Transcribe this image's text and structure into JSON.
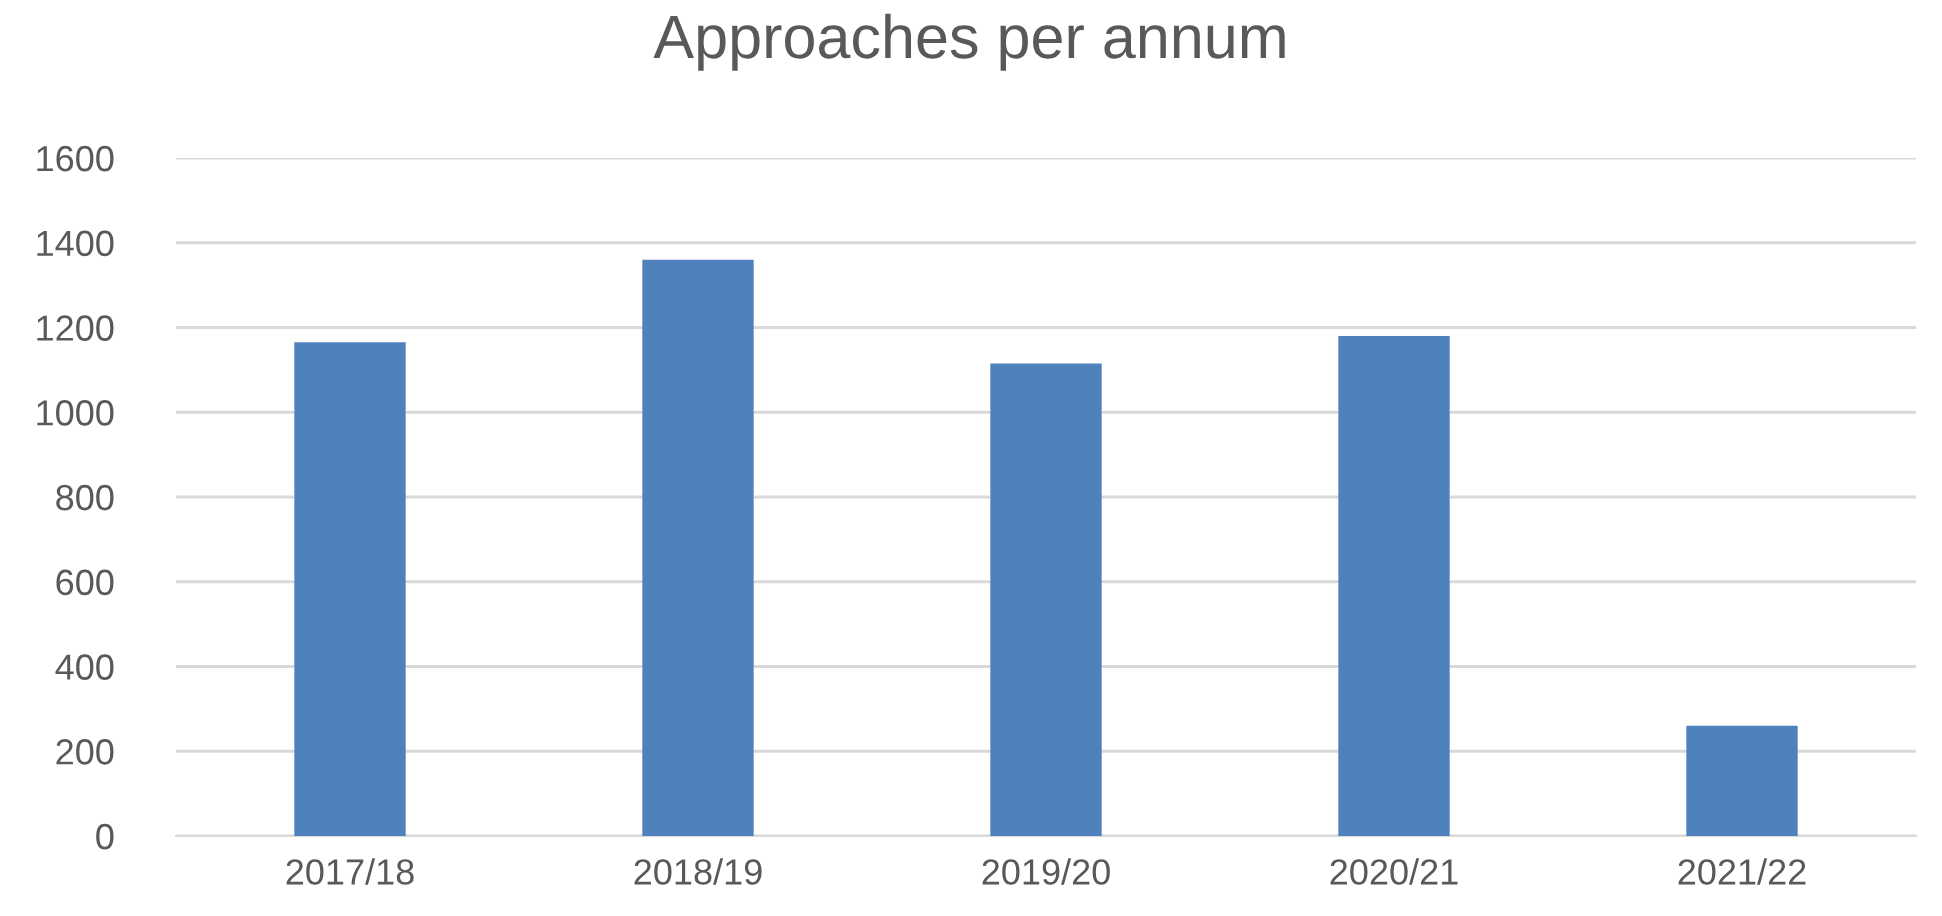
{
  "chart_data": {
    "type": "bar",
    "title": "Approaches per annum",
    "categories": [
      "2017/18",
      "2018/19",
      "2019/20",
      "2020/21",
      "2021/22"
    ],
    "values": [
      1165,
      1360,
      1115,
      1180,
      260
    ],
    "color": "#4f81bd",
    "ylim": [
      0,
      1600
    ],
    "yticks": [
      0,
      200,
      400,
      600,
      800,
      1000,
      1200,
      1400,
      1600
    ],
    "grid": "y"
  }
}
